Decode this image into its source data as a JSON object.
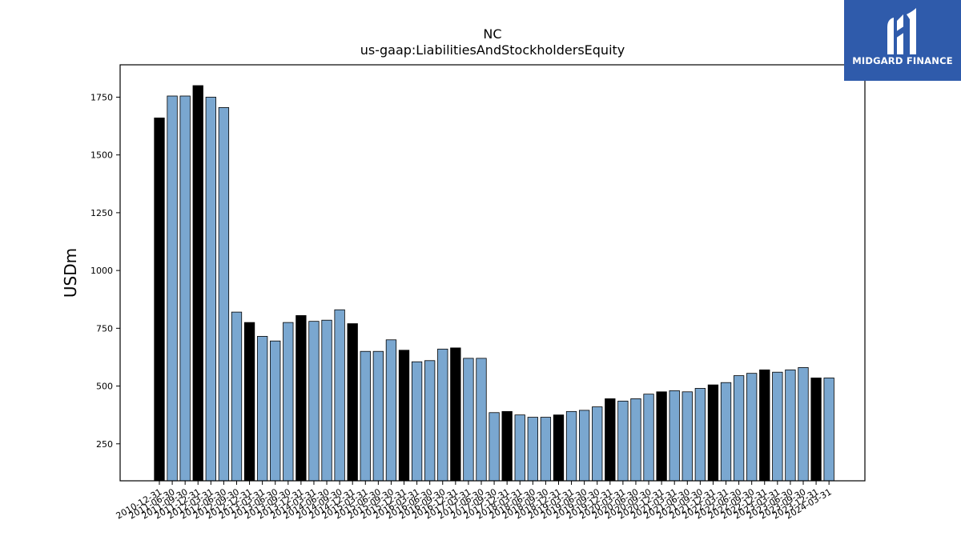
{
  "brand": {
    "name": "MIDGARD FINANCE"
  },
  "chart_data": {
    "type": "bar",
    "title": "NC",
    "subtitle": "us-gaap:LiabilitiesAndStockholdersEquity",
    "ylabel": "USDm",
    "xlabel": "",
    "ylim": [
      90,
      1890
    ],
    "yticks": [
      250,
      500,
      750,
      1000,
      1250,
      1500,
      1750
    ],
    "colors": {
      "annual": "#000000",
      "quarter": "#7aa7d0",
      "edge": "#000000"
    },
    "categories": [
      "2010-12-31",
      "2011-06-30",
      "2011-09-30",
      "2011-12-31",
      "2012-03-31",
      "2012-06-30",
      "2012-09-30",
      "2012-12-31",
      "2013-03-31",
      "2013-06-30",
      "2013-09-30",
      "2013-12-31",
      "2014-03-31",
      "2014-06-30",
      "2014-09-30",
      "2014-12-31",
      "2015-03-31",
      "2015-06-30",
      "2015-09-30",
      "2015-12-31",
      "2016-03-31",
      "2016-06-30",
      "2016-09-30",
      "2016-12-31",
      "2017-03-31",
      "2017-06-30",
      "2017-09-30",
      "2017-12-31",
      "2018-03-31",
      "2018-06-30",
      "2018-09-30",
      "2018-12-31",
      "2019-03-31",
      "2019-06-30",
      "2019-09-30",
      "2019-12-31",
      "2020-03-31",
      "2020-06-30",
      "2020-09-30",
      "2020-12-31",
      "2021-03-31",
      "2021-06-30",
      "2021-09-30",
      "2021-12-31",
      "2022-03-31",
      "2022-06-30",
      "2022-09-30",
      "2022-12-31",
      "2023-03-31",
      "2023-06-30",
      "2023-09-30",
      "2023-12-31",
      "2024-03-31"
    ],
    "values": [
      1660,
      1755,
      1755,
      1800,
      1750,
      1705,
      820,
      775,
      715,
      695,
      775,
      805,
      780,
      785,
      830,
      770,
      650,
      650,
      700,
      655,
      605,
      610,
      660,
      665,
      620,
      620,
      385,
      390,
      375,
      365,
      365,
      375,
      390,
      395,
      410,
      445,
      435,
      445,
      465,
      475,
      480,
      475,
      490,
      505,
      515,
      545,
      555,
      570,
      560,
      570,
      580,
      535,
      535
    ],
    "annual_flags": [
      1,
      0,
      0,
      1,
      0,
      0,
      0,
      1,
      0,
      0,
      0,
      1,
      0,
      0,
      0,
      1,
      0,
      0,
      0,
      1,
      0,
      0,
      0,
      1,
      0,
      0,
      0,
      1,
      0,
      0,
      0,
      1,
      0,
      0,
      0,
      1,
      0,
      0,
      0,
      1,
      0,
      0,
      0,
      1,
      0,
      0,
      0,
      1,
      0,
      0,
      0,
      1,
      0
    ],
    "grid": false,
    "legend": "none"
  }
}
